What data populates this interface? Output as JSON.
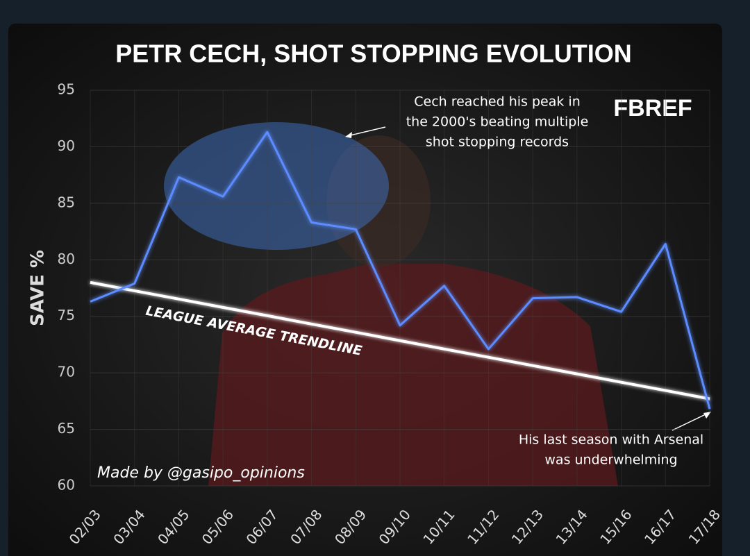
{
  "chart_data": {
    "type": "line",
    "title": "PETR CECH, SHOT STOPPING EVOLUTION",
    "y_label": "SAVE %",
    "categories": [
      "02/03",
      "03/04",
      "04/05",
      "05/06",
      "06/07",
      "07/08",
      "08/09",
      "09/10",
      "10/11",
      "11/12",
      "12/13",
      "13/14",
      "15/16",
      "16/17",
      "17/18"
    ],
    "series": [
      {
        "name": "Cech",
        "color": "#5b8cff",
        "values": [
          76.3,
          77.9,
          87.3,
          85.6,
          91.3,
          83.3,
          82.7,
          74.2,
          77.7,
          72.1,
          76.6,
          76.7,
          75.4,
          81.4,
          66.8
        ]
      }
    ],
    "trendline": {
      "label": "LEAGUE AVERAGE TRENDLINE",
      "color": "#ffffff",
      "values": [
        78.0,
        77.26,
        76.53,
        75.79,
        75.06,
        74.32,
        73.59,
        72.85,
        72.11,
        71.38,
        70.64,
        69.91,
        69.17,
        68.44,
        67.7
      ]
    },
    "ylim": [
      60,
      95
    ],
    "yticks": [
      60,
      65,
      70,
      75,
      80,
      85,
      90,
      95
    ],
    "grid": true,
    "annotations": [
      {
        "lines": [
          "Cech reached his peak in",
          "the 2000's beating multiple",
          "shot stopping records"
        ]
      },
      {
        "lines": [
          "His last season with Arsenal",
          "was underwhelming"
        ]
      }
    ],
    "credit": "Made by @gasipo_opinions",
    "logo": "FBREF"
  }
}
